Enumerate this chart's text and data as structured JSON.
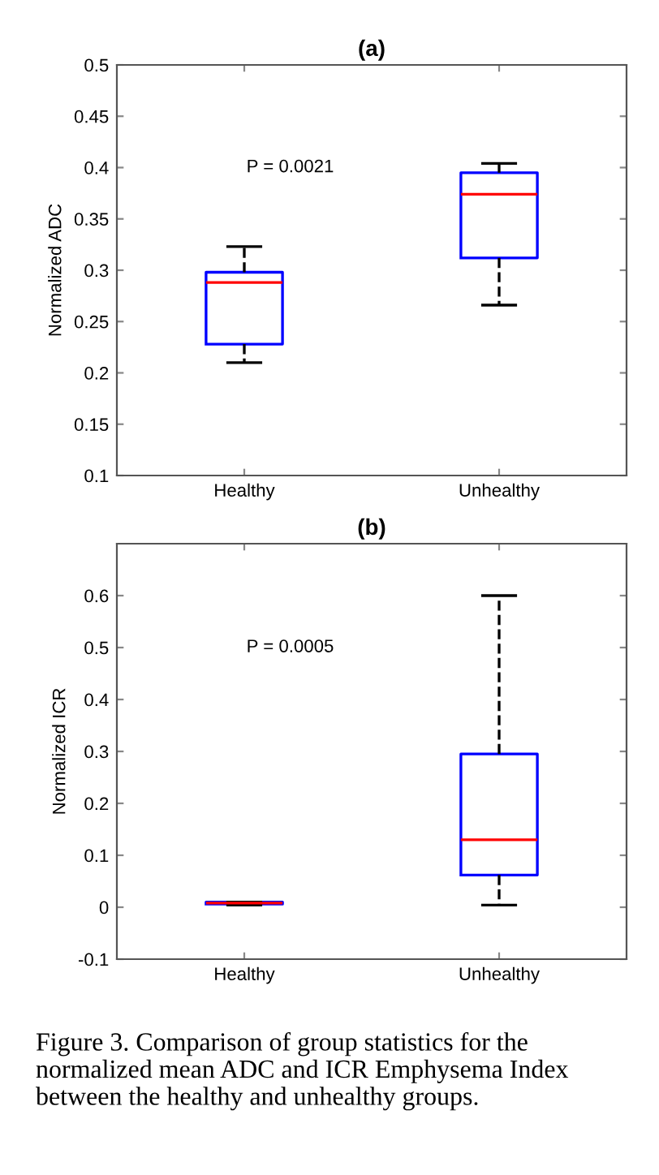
{
  "chart_data": [
    {
      "type": "box",
      "title": "(a)",
      "ylabel": "Normalized ADC",
      "categories": [
        "Healthy",
        "Unhealthy"
      ],
      "boxes": [
        {
          "low": 0.21,
          "q1": 0.228,
          "median": 0.288,
          "q3": 0.298,
          "high": 0.323
        },
        {
          "low": 0.266,
          "q1": 0.312,
          "median": 0.374,
          "q3": 0.395,
          "high": 0.404
        }
      ],
      "color": "#0000ff",
      "ylim": [
        0.1,
        0.5
      ],
      "yticks": [
        0.1,
        0.15,
        0.2,
        0.25,
        0.3,
        0.35,
        0.4,
        0.45,
        0.5
      ],
      "grid": false,
      "annotations": [
        "P = 0.0021"
      ]
    },
    {
      "type": "box",
      "title": "(b)",
      "ylabel": "Normalized ICR",
      "categories": [
        "Healthy",
        "Unhealthy"
      ],
      "boxes": [
        {
          "low": 0.004,
          "q1": 0.006,
          "median": 0.008,
          "q3": 0.01,
          "high": 0.01
        },
        {
          "low": 0.004,
          "q1": 0.062,
          "median": 0.13,
          "q3": 0.295,
          "high": 0.6
        }
      ],
      "color": "#0000ff",
      "ylim": [
        -0.1,
        0.7
      ],
      "yticks": [
        -0.1,
        0,
        0.1,
        0.2,
        0.3,
        0.4,
        0.5,
        0.6
      ],
      "grid": false,
      "annotations": [
        "P = 0.0005",
        "Figure 3. Comparison of group statistics for the normalized mean ADC and ICR Emphysema Index between the healthy and unhealthy groups."
      ]
    }
  ]
}
